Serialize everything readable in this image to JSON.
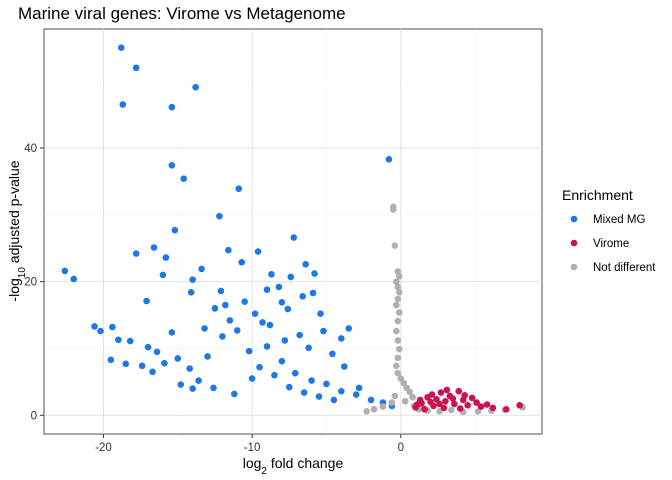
{
  "chart_data": {
    "type": "scatter",
    "title": "Marine viral genes: Virome vs Metagenome",
    "xlabel": {
      "main": "log",
      "sub": "2",
      "rest": " fold change"
    },
    "ylabel": {
      "pre": "-log",
      "sub": "10",
      "rest": " adjusted p-value"
    },
    "xlim": [
      -24,
      9.5
    ],
    "ylim": [
      -2.8,
      57.8
    ],
    "x_ticks": [
      -20,
      -10,
      0
    ],
    "x_tick_labels": [
      "-20",
      "-10",
      "0"
    ],
    "y_ticks": [
      0,
      20,
      40
    ],
    "y_tick_labels": [
      "0",
      "20",
      "40"
    ],
    "grid": true,
    "legend": {
      "title": "Enrichment",
      "position": "right"
    },
    "series": [
      {
        "name": "Mixed MG",
        "color": "#1f77e4",
        "points": [
          [
            -18.8,
            55
          ],
          [
            -17.8,
            52
          ],
          [
            -18.7,
            46.5
          ],
          [
            -13.8,
            49.1
          ],
          [
            -15.4,
            46.1
          ],
          [
            -15.4,
            37.4
          ],
          [
            -14.6,
            35.4
          ],
          [
            -10.9,
            33.9
          ],
          [
            -12.2,
            29.8
          ],
          [
            -15.2,
            27.7
          ],
          [
            -16.6,
            25.1
          ],
          [
            -15.8,
            23.6
          ],
          [
            -7.2,
            26.6
          ],
          [
            -11.6,
            24.7
          ],
          [
            -22.6,
            21.6
          ],
          [
            -22.0,
            20.4
          ],
          [
            -17.8,
            24.2
          ],
          [
            -16.0,
            21.0
          ],
          [
            -14.0,
            20.3
          ],
          [
            -0.8,
            38.3
          ],
          [
            -19.4,
            13.2
          ],
          [
            -20.6,
            13.3
          ],
          [
            -20.2,
            12.6
          ],
          [
            -19.0,
            11.3
          ],
          [
            -18.2,
            11.1
          ],
          [
            -17.1,
            17.1
          ],
          [
            -15.4,
            12.4
          ],
          [
            -14.1,
            18.4
          ],
          [
            -13.4,
            21.9
          ],
          [
            -12.1,
            18.6
          ],
          [
            -10.7,
            22.9
          ],
          [
            -9.6,
            24.5
          ],
          [
            -8.7,
            21.1
          ],
          [
            -8.2,
            19.2
          ],
          [
            -7.4,
            20.7
          ],
          [
            -9.3,
            13.9
          ],
          [
            -11.8,
            16.5
          ],
          [
            -6.4,
            22.6
          ],
          [
            -5.8,
            21.2
          ],
          [
            -5.4,
            15.2
          ],
          [
            -19.5,
            8.3
          ],
          [
            -18.5,
            7.7
          ],
          [
            -17.4,
            7.4
          ],
          [
            -16.7,
            6.5
          ],
          [
            -15.9,
            7.8
          ],
          [
            -14.8,
            4.6
          ],
          [
            -13.6,
            5.2
          ],
          [
            -12.6,
            4.1
          ],
          [
            -11.2,
            3.2
          ],
          [
            -16.4,
            9.5
          ],
          [
            -17.0,
            10.2
          ],
          [
            -15.0,
            8.5
          ],
          [
            -14.2,
            7.0
          ],
          [
            -13.0,
            8.8
          ],
          [
            -12.0,
            11.8
          ],
          [
            -11.0,
            12.7
          ],
          [
            -10.2,
            9.6
          ],
          [
            -9.0,
            10.3
          ],
          [
            -8.0,
            8.1
          ],
          [
            -7.1,
            6.3
          ],
          [
            -6.0,
            5.2
          ],
          [
            -5.0,
            4.7
          ],
          [
            -4.0,
            3.6
          ],
          [
            -3.0,
            3.1
          ],
          [
            -2.0,
            2.3
          ],
          [
            -1.2,
            1.9
          ],
          [
            -0.6,
            1.4
          ],
          [
            -14.0,
            4.0
          ],
          [
            -10.0,
            5.5
          ],
          [
            -9.5,
            7.2
          ],
          [
            -8.5,
            6.0
          ],
          [
            -7.5,
            4.2
          ],
          [
            -6.5,
            3.4
          ],
          [
            -5.5,
            2.8
          ],
          [
            -4.5,
            2.3
          ],
          [
            -12.5,
            16.0
          ],
          [
            -13.2,
            13.0
          ],
          [
            -11.5,
            14.2
          ],
          [
            -10.5,
            17.0
          ],
          [
            -9.8,
            15.2
          ],
          [
            -8.8,
            13.5
          ],
          [
            -7.8,
            11.2
          ],
          [
            -6.8,
            12.0
          ],
          [
            -6.2,
            10.1
          ],
          [
            -5.2,
            12.6
          ],
          [
            -4.6,
            9.2
          ],
          [
            -3.8,
            7.3
          ],
          [
            -2.8,
            4.1
          ],
          [
            -4.0,
            11.5
          ],
          [
            -3.5,
            13.0
          ],
          [
            -6.6,
            17.8
          ],
          [
            -5.9,
            18.3
          ],
          [
            -7.6,
            15.9
          ],
          [
            -9.0,
            18.8
          ],
          [
            -8.0,
            16.9
          ]
        ]
      },
      {
        "name": "Virome",
        "color": "#cc1155",
        "points": [
          [
            1.0,
            1.2
          ],
          [
            1.4,
            1.8
          ],
          [
            1.8,
            2.7
          ],
          [
            2.1,
            3.1
          ],
          [
            2.4,
            2.4
          ],
          [
            2.7,
            3.4
          ],
          [
            3.0,
            2.1
          ],
          [
            3.3,
            2.9
          ],
          [
            3.6,
            1.7
          ],
          [
            3.9,
            3.6
          ],
          [
            4.2,
            2.3
          ],
          [
            4.5,
            1.5
          ],
          [
            4.8,
            2.6
          ],
          [
            5.1,
            1.9
          ],
          [
            5.4,
            1.3
          ],
          [
            1.6,
            0.9
          ],
          [
            2.2,
            1.4
          ],
          [
            2.9,
            1.1
          ],
          [
            3.5,
            2.5
          ],
          [
            4.0,
            1.0
          ],
          [
            5.8,
            1.6
          ],
          [
            6.2,
            1.1
          ],
          [
            7.1,
            0.9
          ],
          [
            8.0,
            1.5
          ],
          [
            1.3,
            2.3
          ],
          [
            2.6,
            1.7
          ],
          [
            3.1,
            3.8
          ],
          [
            4.3,
            3.0
          ],
          [
            2.0,
            2.0
          ],
          [
            1.1,
            1.6
          ]
        ]
      },
      {
        "name": "Not different",
        "color": "#b0b0b0",
        "points": [
          [
            -0.5,
            31.2
          ],
          [
            -0.5,
            30.8
          ],
          [
            -0.4,
            25.4
          ],
          [
            -0.2,
            21.5
          ],
          [
            -0.1,
            20.8
          ],
          [
            -0.3,
            20.0
          ],
          [
            -0.2,
            19.2
          ],
          [
            -0.1,
            18.4
          ],
          [
            -0.2,
            17.4
          ],
          [
            -0.3,
            16.5
          ],
          [
            -0.1,
            15.4
          ],
          [
            -0.2,
            14.1
          ],
          [
            -0.3,
            12.6
          ],
          [
            -0.2,
            11.2
          ],
          [
            -0.1,
            9.9
          ],
          [
            -0.2,
            8.6
          ],
          [
            -0.3,
            7.4
          ],
          [
            -0.2,
            6.3
          ],
          [
            0.0,
            5.5
          ],
          [
            0.2,
            4.8
          ],
          [
            0.4,
            4.1
          ],
          [
            0.6,
            3.5
          ],
          [
            0.8,
            2.7
          ],
          [
            0.3,
            2.1
          ],
          [
            -0.6,
            1.9
          ],
          [
            -1.2,
            1.3
          ],
          [
            -1.8,
            0.9
          ],
          [
            -2.3,
            0.6
          ],
          [
            1.2,
            0.9
          ],
          [
            1.8,
            0.7
          ],
          [
            2.6,
            0.6
          ],
          [
            3.4,
            0.8
          ],
          [
            4.2,
            0.5
          ],
          [
            5.2,
            0.6
          ],
          [
            6.1,
            0.7
          ],
          [
            7.0,
            0.8
          ],
          [
            8.2,
            1.2
          ],
          [
            -0.4,
            2.9
          ],
          [
            0.9,
            1.4
          ],
          [
            1.5,
            1.1
          ]
        ]
      }
    ]
  }
}
